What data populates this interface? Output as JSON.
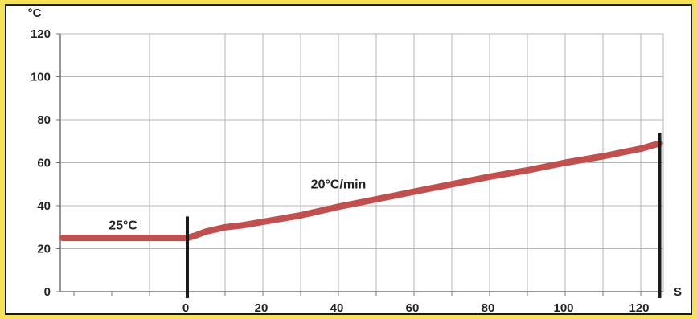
{
  "chart_data": {
    "type": "line",
    "title": "",
    "ylabel": "°C",
    "xlabel": "S",
    "ylim": [
      0,
      120
    ],
    "xlim": [
      -33,
      125
    ],
    "y_ticks": [
      0,
      20,
      40,
      60,
      80,
      100,
      120
    ],
    "x_ticks": [
      0,
      20,
      40,
      60,
      80,
      100,
      120
    ],
    "grid": true,
    "colors": {
      "line": "#c0504d",
      "marker_lines": "#1a1a1a",
      "grid": "#b5b5b5"
    },
    "annotations": [
      {
        "text": "25°C",
        "x": -17,
        "y": 29
      },
      {
        "text": "20°C/min",
        "x": 40,
        "y": 48
      }
    ],
    "vertical_markers": [
      {
        "x": 0,
        "y_top": 35
      },
      {
        "x": 125,
        "y_top": 74
      }
    ],
    "series": [
      {
        "values": [
          {
            "x": -33,
            "y": 25
          },
          {
            "x": -10,
            "y": 25
          },
          {
            "x": 0,
            "y": 25
          },
          {
            "x": 2,
            "y": 26
          },
          {
            "x": 5,
            "y": 28
          },
          {
            "x": 10,
            "y": 30
          },
          {
            "x": 15,
            "y": 31
          },
          {
            "x": 20,
            "y": 32.5
          },
          {
            "x": 30,
            "y": 35.5
          },
          {
            "x": 40,
            "y": 39.5
          },
          {
            "x": 50,
            "y": 43
          },
          {
            "x": 60,
            "y": 46.5
          },
          {
            "x": 70,
            "y": 50
          },
          {
            "x": 80,
            "y": 53.5
          },
          {
            "x": 90,
            "y": 56.5
          },
          {
            "x": 100,
            "y": 60
          },
          {
            "x": 110,
            "y": 63
          },
          {
            "x": 120,
            "y": 66.5
          },
          {
            "x": 125,
            "y": 69
          }
        ]
      }
    ]
  }
}
